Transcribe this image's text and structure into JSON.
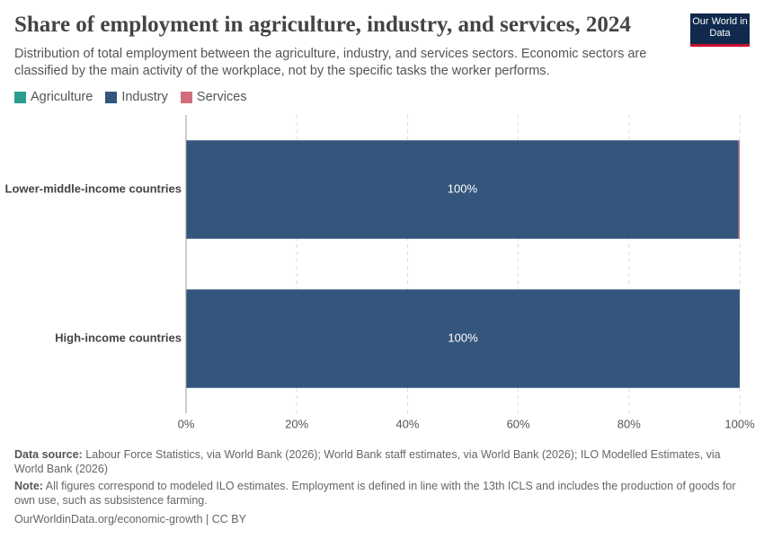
{
  "logo": "Our World in Data",
  "chart_data": {
    "type": "stacked-bar-horizontal",
    "title": "Share of employment in agriculture, industry, and services, 2024",
    "subtitle": "Distribution of total employment between the agriculture, industry, and services sectors. Economic sectors are classified by the main activity of the workplace, not by the specific tasks the worker performs.",
    "categories": [
      "Lower-middle-income countries",
      "High-income countries"
    ],
    "series": [
      {
        "name": "Agriculture",
        "color": "#2a9d8f",
        "values": [
          0,
          0
        ]
      },
      {
        "name": "Industry",
        "color": "#34557c",
        "values": [
          99.8,
          100
        ],
        "value_labels": [
          "100%",
          "100%"
        ]
      },
      {
        "name": "Services",
        "color": "#cf6f7d",
        "values": [
          0.2,
          0
        ]
      }
    ],
    "xlim": [
      0,
      100
    ],
    "xticks": [
      {
        "value": 0,
        "label": "0%"
      },
      {
        "value": 20,
        "label": "20%"
      },
      {
        "value": 40,
        "label": "40%"
      },
      {
        "value": 60,
        "label": "60%"
      },
      {
        "value": 80,
        "label": "80%"
      },
      {
        "value": 100,
        "label": "100%"
      }
    ],
    "grid": true,
    "source_label": "Data source:",
    "source": "Labour Force Statistics, via World Bank (2026); World Bank staff estimates, via World Bank (2026); ILO Modelled Estimates, via World Bank (2026)",
    "note_label": "Note:",
    "note": "All figures correspond to modeled ILO estimates. Employment is defined in line with the 13th ICLS and includes the production of goods for own use, such as subsistence farming.",
    "url": "OurWorldinData.org/economic-growth | CC BY"
  }
}
